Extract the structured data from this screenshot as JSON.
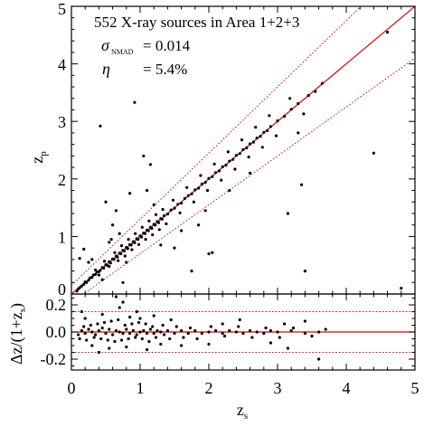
{
  "chart_data": [
    {
      "type": "scatter",
      "panel": "main",
      "annotation": {
        "title": "552 X-ray sources in Area 1+2+3",
        "sigma_symbol": "σ",
        "sigma_subscript": "NMAD",
        "sigma_value": "= 0.014",
        "eta_symbol": "η",
        "eta_value": "= 5.4%"
      },
      "ylabel": "z",
      "ylabel_sub": "p",
      "xlim": [
        0,
        5
      ],
      "ylim": [
        0,
        5
      ],
      "xticks": [
        0,
        1,
        2,
        3,
        4,
        5
      ],
      "yticks": [
        0,
        1,
        2,
        3,
        4,
        5
      ],
      "one_to_one_line": {
        "slope": 1,
        "intercept": 0,
        "color": "#dd0000"
      },
      "outlier_bounds": {
        "fraction": 0.15,
        "style": "dotted",
        "color": "#dd0000"
      },
      "point_color": "#000000",
      "points": [
        [
          0.08,
          0.05
        ],
        [
          0.1,
          0.09
        ],
        [
          0.12,
          0.11
        ],
        [
          0.15,
          0.14
        ],
        [
          0.18,
          0.17
        ],
        [
          0.2,
          0.21
        ],
        [
          0.22,
          0.2
        ],
        [
          0.25,
          0.24
        ],
        [
          0.27,
          0.28
        ],
        [
          0.3,
          0.29
        ],
        [
          0.32,
          0.33
        ],
        [
          0.35,
          0.34
        ],
        [
          0.37,
          0.38
        ],
        [
          0.4,
          0.39
        ],
        [
          0.42,
          0.41
        ],
        [
          0.45,
          0.46
        ],
        [
          0.47,
          0.45
        ],
        [
          0.5,
          0.51
        ],
        [
          0.52,
          0.5
        ],
        [
          0.55,
          0.56
        ],
        [
          0.57,
          0.54
        ],
        [
          0.6,
          0.61
        ],
        [
          0.62,
          0.6
        ],
        [
          0.65,
          0.66
        ],
        [
          0.67,
          0.64
        ],
        [
          0.7,
          0.71
        ],
        [
          0.72,
          0.7
        ],
        [
          0.75,
          0.76
        ],
        [
          0.77,
          0.75
        ],
        [
          0.8,
          0.81
        ],
        [
          0.82,
          0.79
        ],
        [
          0.85,
          0.86
        ],
        [
          0.87,
          0.85
        ],
        [
          0.9,
          0.91
        ],
        [
          0.92,
          0.89
        ],
        [
          0.95,
          0.96
        ],
        [
          0.97,
          0.95
        ],
        [
          1.0,
          1.01
        ],
        [
          1.02,
          0.99
        ],
        [
          1.05,
          1.06
        ],
        [
          1.07,
          1.05
        ],
        [
          1.1,
          1.11
        ],
        [
          1.12,
          1.1
        ],
        [
          1.15,
          1.16
        ],
        [
          1.17,
          1.14
        ],
        [
          1.2,
          1.21
        ],
        [
          1.22,
          1.2
        ],
        [
          1.25,
          1.26
        ],
        [
          1.27,
          1.24
        ],
        [
          1.3,
          1.31
        ],
        [
          1.32,
          1.3
        ],
        [
          1.35,
          1.36
        ],
        [
          1.4,
          1.39
        ],
        [
          1.45,
          1.46
        ],
        [
          1.5,
          1.49
        ],
        [
          1.55,
          1.56
        ],
        [
          1.6,
          1.58
        ],
        [
          1.65,
          1.66
        ],
        [
          1.7,
          1.71
        ],
        [
          1.75,
          1.74
        ],
        [
          1.8,
          1.81
        ],
        [
          1.85,
          1.84
        ],
        [
          1.9,
          1.91
        ],
        [
          1.95,
          1.94
        ],
        [
          2.0,
          2.01
        ],
        [
          2.05,
          2.04
        ],
        [
          2.1,
          2.11
        ],
        [
          2.15,
          2.14
        ],
        [
          2.2,
          2.21
        ],
        [
          2.25,
          2.24
        ],
        [
          2.3,
          2.31
        ],
        [
          2.35,
          2.34
        ],
        [
          2.4,
          2.41
        ],
        [
          2.45,
          2.44
        ],
        [
          2.5,
          2.51
        ],
        [
          2.55,
          2.54
        ],
        [
          2.6,
          2.61
        ],
        [
          2.65,
          2.64
        ],
        [
          2.7,
          2.71
        ],
        [
          2.75,
          2.74
        ],
        [
          2.8,
          2.81
        ],
        [
          2.85,
          2.84
        ],
        [
          2.9,
          2.91
        ],
        [
          3.0,
          3.01
        ],
        [
          3.1,
          3.09
        ],
        [
          3.2,
          3.21
        ],
        [
          3.3,
          3.31
        ],
        [
          3.45,
          3.45
        ],
        [
          3.55,
          3.52
        ],
        [
          3.65,
          3.66
        ],
        [
          4.6,
          4.55
        ],
        [
          0.35,
          0.42
        ],
        [
          0.4,
          0.33
        ],
        [
          0.48,
          0.57
        ],
        [
          0.55,
          0.48
        ],
        [
          0.63,
          0.72
        ],
        [
          0.68,
          0.58
        ],
        [
          0.73,
          0.84
        ],
        [
          0.78,
          0.66
        ],
        [
          0.83,
          0.95
        ],
        [
          0.88,
          0.77
        ],
        [
          0.93,
          1.05
        ],
        [
          0.98,
          0.86
        ],
        [
          1.03,
          1.16
        ],
        [
          1.08,
          0.95
        ],
        [
          1.13,
          1.27
        ],
        [
          1.18,
          1.03
        ],
        [
          1.23,
          1.38
        ],
        [
          1.28,
          1.12
        ],
        [
          1.33,
          1.47
        ],
        [
          1.38,
          1.22
        ],
        [
          1.48,
          1.63
        ],
        [
          1.58,
          1.41
        ],
        [
          1.68,
          1.85
        ],
        [
          1.78,
          1.6
        ],
        [
          1.88,
          2.06
        ],
        [
          1.98,
          1.8
        ],
        [
          2.08,
          2.26
        ],
        [
          2.18,
          1.98
        ],
        [
          2.28,
          2.47
        ],
        [
          2.38,
          2.17
        ],
        [
          2.48,
          2.68
        ],
        [
          2.58,
          2.38
        ],
        [
          2.68,
          2.9
        ],
        [
          2.78,
          2.55
        ],
        [
          2.88,
          3.1
        ],
        [
          2.98,
          2.75
        ],
        [
          3.18,
          3.4
        ],
        [
          3.38,
          3.13
        ],
        [
          0.12,
          0.62
        ],
        [
          0.18,
          0.78
        ],
        [
          0.42,
          2.92
        ],
        [
          0.5,
          1.6
        ],
        [
          0.55,
          0.9
        ],
        [
          0.6,
          1.2
        ],
        [
          0.65,
          1.45
        ],
        [
          0.7,
          1.05
        ],
        [
          0.85,
          1.75
        ],
        [
          0.92,
          3.33
        ],
        [
          1.05,
          2.4
        ],
        [
          1.1,
          1.8
        ],
        [
          1.15,
          2.25
        ],
        [
          1.2,
          1.55
        ],
        [
          1.3,
          0.85
        ],
        [
          1.5,
          0.8
        ],
        [
          1.75,
          0.4
        ],
        [
          2.0,
          0.7
        ],
        [
          2.05,
          0.72
        ],
        [
          3.15,
          1.4
        ],
        [
          3.4,
          0.4
        ],
        [
          3.35,
          1.9
        ],
        [
          4.4,
          2.45
        ],
        [
          4.8,
          0.1
        ],
        [
          0.75,
          0.2
        ],
        [
          1.85,
          1.2
        ],
        [
          2.3,
          1.8
        ],
        [
          3.3,
          2.8
        ],
        [
          0.3,
          0.6
        ],
        [
          0.45,
          0.25
        ],
        [
          0.58,
          0.95
        ],
        [
          0.8,
          0.55
        ],
        [
          1.6,
          1.1
        ],
        [
          1.95,
          1.45
        ],
        [
          2.6,
          2.1
        ],
        [
          0.25,
          0.55
        ]
      ]
    },
    {
      "type": "scatter",
      "panel": "residual",
      "xlabel": "z",
      "xlabel_sub": "s",
      "ylabel": "Δz/(1+z",
      "ylabel_sub": "s",
      "ylabel_close": ")",
      "xlim": [
        0,
        5
      ],
      "ylim": [
        -0.28,
        0.28
      ],
      "xticks": [
        0,
        1,
        2,
        3,
        4,
        5
      ],
      "yticks": [
        -0.2,
        0.0,
        0.2
      ],
      "ytick_labels": [
        "-0.2",
        "0.0",
        "0.2"
      ],
      "zero_line": {
        "value": 0.0,
        "color": "#dd0000"
      },
      "bounds": {
        "values": [
          0.15,
          -0.15
        ],
        "style": "dotted",
        "color": "#dd0000"
      },
      "point_color": "#000000",
      "points": [
        [
          0.1,
          -0.02
        ],
        [
          0.15,
          0.01
        ],
        [
          0.2,
          -0.01
        ],
        [
          0.25,
          0.02
        ],
        [
          0.3,
          0.0
        ],
        [
          0.35,
          -0.02
        ],
        [
          0.4,
          0.01
        ],
        [
          0.45,
          0.03
        ],
        [
          0.5,
          -0.01
        ],
        [
          0.55,
          0.02
        ],
        [
          0.6,
          -0.02
        ],
        [
          0.65,
          0.01
        ],
        [
          0.7,
          0.0
        ],
        [
          0.75,
          -0.01
        ],
        [
          0.8,
          0.02
        ],
        [
          0.85,
          -0.01
        ],
        [
          0.9,
          0.01
        ],
        [
          0.95,
          -0.02
        ],
        [
          1.0,
          0.0
        ],
        [
          1.05,
          0.01
        ],
        [
          1.1,
          -0.01
        ],
        [
          1.15,
          0.02
        ],
        [
          1.2,
          -0.01
        ],
        [
          1.25,
          0.01
        ],
        [
          1.3,
          0.0
        ],
        [
          1.35,
          -0.02
        ],
        [
          1.4,
          0.01
        ],
        [
          1.5,
          -0.01
        ],
        [
          1.6,
          0.01
        ],
        [
          1.7,
          -0.01
        ],
        [
          1.8,
          0.01
        ],
        [
          1.9,
          -0.01
        ],
        [
          2.0,
          0.0
        ],
        [
          2.1,
          0.01
        ],
        [
          2.2,
          -0.01
        ],
        [
          2.3,
          0.01
        ],
        [
          2.4,
          0.0
        ],
        [
          2.5,
          -0.01
        ],
        [
          2.6,
          0.01
        ],
        [
          2.7,
          0.0
        ],
        [
          2.8,
          -0.01
        ],
        [
          2.9,
          0.01
        ],
        [
          3.0,
          0.0
        ],
        [
          3.2,
          0.01
        ],
        [
          3.4,
          -0.01
        ],
        [
          3.6,
          0.0
        ],
        [
          0.12,
          -0.05
        ],
        [
          0.18,
          0.04
        ],
        [
          0.22,
          -0.06
        ],
        [
          0.28,
          0.05
        ],
        [
          0.33,
          -0.04
        ],
        [
          0.38,
          0.06
        ],
        [
          0.43,
          -0.05
        ],
        [
          0.48,
          0.07
        ],
        [
          0.53,
          -0.06
        ],
        [
          0.58,
          0.08
        ],
        [
          0.63,
          -0.07
        ],
        [
          0.68,
          0.09
        ],
        [
          0.73,
          -0.06
        ],
        [
          0.78,
          0.05
        ],
        [
          0.83,
          -0.05
        ],
        [
          0.88,
          0.06
        ],
        [
          0.93,
          -0.04
        ],
        [
          0.98,
          0.07
        ],
        [
          1.03,
          -0.05
        ],
        [
          1.08,
          0.06
        ],
        [
          1.13,
          -0.07
        ],
        [
          1.18,
          0.04
        ],
        [
          1.23,
          -0.04
        ],
        [
          1.33,
          0.05
        ],
        [
          1.43,
          -0.05
        ],
        [
          1.53,
          0.04
        ],
        [
          1.63,
          -0.04
        ],
        [
          1.73,
          0.03
        ],
        [
          1.83,
          -0.05
        ],
        [
          2.03,
          0.04
        ],
        [
          2.23,
          -0.03
        ],
        [
          2.43,
          0.04
        ],
        [
          2.63,
          -0.04
        ],
        [
          2.83,
          0.03
        ],
        [
          3.03,
          -0.04
        ],
        [
          3.23,
          0.03
        ],
        [
          3.5,
          -0.03
        ],
        [
          3.7,
          0.02
        ],
        [
          0.2,
          0.1
        ],
        [
          0.3,
          -0.1
        ],
        [
          0.45,
          0.13
        ],
        [
          0.55,
          -0.12
        ],
        [
          0.65,
          0.26
        ],
        [
          0.7,
          0.18
        ],
        [
          0.75,
          0.22
        ],
        [
          0.8,
          -0.11
        ],
        [
          0.95,
          0.15
        ],
        [
          1.0,
          0.1
        ],
        [
          1.1,
          -0.13
        ],
        [
          1.2,
          0.12
        ],
        [
          1.3,
          -0.09
        ],
        [
          1.6,
          -0.1
        ],
        [
          2.0,
          -0.09
        ],
        [
          2.45,
          0.09
        ],
        [
          2.9,
          -0.08
        ],
        [
          3.15,
          -0.12
        ],
        [
          3.4,
          0.08
        ],
        [
          3.6,
          -0.2
        ],
        [
          0.15,
          0.15
        ],
        [
          0.4,
          -0.15
        ],
        [
          0.85,
          0.11
        ],
        [
          1.45,
          0.09
        ],
        [
          2.2,
          0.06
        ],
        [
          3.1,
          0.06
        ]
      ]
    }
  ]
}
